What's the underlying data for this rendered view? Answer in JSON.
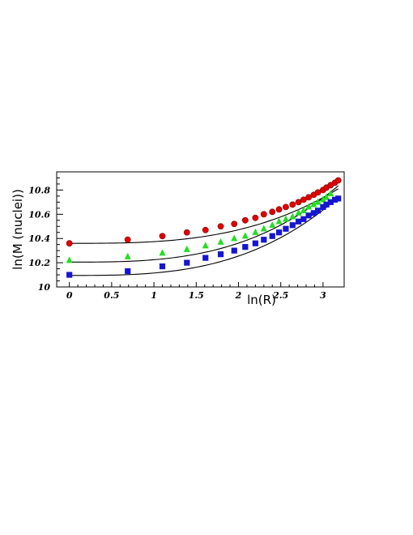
{
  "chart_data": {
    "type": "scatter",
    "title": "",
    "xlabel": "ln(R)",
    "ylabel": "ln(M (nuclei))",
    "xlim": [
      -0.15,
      3.25
    ],
    "ylim": [
      10.0,
      10.95
    ],
    "xticks": [
      "0",
      "0.5",
      "1",
      "1.5",
      "2",
      "2.5",
      "3"
    ],
    "xtick_values": [
      0,
      0.5,
      1,
      1.5,
      2,
      2.5,
      3
    ],
    "yticks": [
      "10",
      "10.2",
      "10.4",
      "10.6",
      "10.8"
    ],
    "ytick_values": [
      10.0,
      10.2,
      10.4,
      10.6,
      10.8
    ],
    "grid": false,
    "legend": "none",
    "series": [
      {
        "marker": "circle",
        "color": "#e00000",
        "x": [
          0,
          0.69,
          1.1,
          1.39,
          1.61,
          1.79,
          1.95,
          2.08,
          2.2,
          2.3,
          2.4,
          2.48,
          2.56,
          2.64,
          2.71,
          2.77,
          2.83,
          2.89,
          2.94,
          3.0,
          3.04,
          3.09,
          3.14,
          3.18
        ],
        "values": [
          10.36,
          10.39,
          10.42,
          10.45,
          10.47,
          10.5,
          10.52,
          10.55,
          10.57,
          10.6,
          10.62,
          10.64,
          10.66,
          10.68,
          10.7,
          10.72,
          10.74,
          10.76,
          10.78,
          10.8,
          10.82,
          10.84,
          10.86,
          10.88
        ],
        "fit": [
          10.36,
          0.0,
          0.0,
          0.014
        ]
      },
      {
        "marker": "triangle",
        "color": "#22dd22",
        "x": [
          0,
          0.69,
          1.1,
          1.39,
          1.61,
          1.79,
          1.95,
          2.08,
          2.2,
          2.3,
          2.4,
          2.48,
          2.56,
          2.64,
          2.71,
          2.77,
          2.83,
          2.89,
          2.94,
          3.0,
          3.04,
          3.09
        ],
        "values": [
          10.22,
          10.25,
          10.28,
          10.31,
          10.34,
          10.37,
          10.4,
          10.42,
          10.45,
          10.48,
          10.51,
          10.54,
          10.56,
          10.58,
          10.61,
          10.63,
          10.66,
          10.68,
          10.7,
          10.72,
          10.74,
          10.77
        ],
        "fit": [
          10.205,
          0.0,
          0.0,
          0.0196
        ]
      },
      {
        "marker": "square",
        "color": "#1515d0",
        "x": [
          0,
          0.69,
          1.1,
          1.39,
          1.61,
          1.79,
          1.95,
          2.08,
          2.2,
          2.3,
          2.4,
          2.48,
          2.56,
          2.64,
          2.71,
          2.77,
          2.83,
          2.89,
          2.94,
          3.0,
          3.04,
          3.09,
          3.14,
          3.18
        ],
        "values": [
          10.1,
          10.13,
          10.17,
          10.2,
          10.24,
          10.27,
          10.3,
          10.33,
          10.36,
          10.39,
          10.42,
          10.45,
          10.48,
          10.51,
          10.54,
          10.56,
          10.59,
          10.61,
          10.63,
          10.66,
          10.68,
          10.7,
          10.72,
          10.73
        ],
        "fit": [
          10.095,
          0.0,
          0.0,
          0.02
        ]
      }
    ]
  }
}
